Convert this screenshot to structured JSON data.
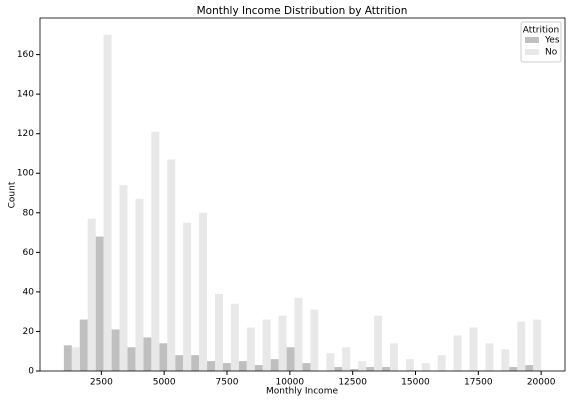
{
  "chart_data": {
    "type": "histogram",
    "title": "Monthly Income Distribution by Attrition",
    "x_label": "Monthly Income",
    "y_label": "Count",
    "bins": [
      1009,
      1642,
      2275,
      2908,
      3541,
      4174,
      4807,
      5440,
      6073,
      6706,
      7339,
      7972,
      8605,
      9238,
      9871,
      10504,
      11137,
      11770,
      12403,
      13036,
      13669,
      14302,
      14935,
      15568,
      16201,
      16834,
      17467,
      18100,
      18733,
      19366,
      19999
    ],
    "series": [
      {
        "name": "Yes",
        "color": "#bfbfbf",
        "values": [
          13,
          26,
          68,
          21,
          12,
          17,
          14,
          8,
          8,
          5,
          4,
          5,
          3,
          6,
          12,
          4,
          0,
          2,
          1,
          2,
          2,
          0,
          0,
          0,
          0,
          0,
          0,
          0,
          2,
          3
        ]
      },
      {
        "name": "No",
        "color": "#e8e8e8",
        "values": [
          12,
          77,
          170,
          94,
          87,
          121,
          107,
          75,
          80,
          39,
          34,
          22,
          26,
          28,
          37,
          31,
          9,
          12,
          5,
          28,
          14,
          6,
          4,
          8,
          18,
          22,
          14,
          11,
          25,
          26
        ]
      }
    ],
    "legend_title": "Attrition",
    "legend": "upper right",
    "xlim": [
      59,
      20949
    ],
    "xticks": [
      2500,
      5000,
      7500,
      10000,
      12500,
      15000,
      17500,
      20000
    ],
    "ylim": [
      0,
      178.5
    ],
    "yticks": [
      0,
      20,
      40,
      60,
      80,
      100,
      120,
      140,
      160
    ]
  }
}
